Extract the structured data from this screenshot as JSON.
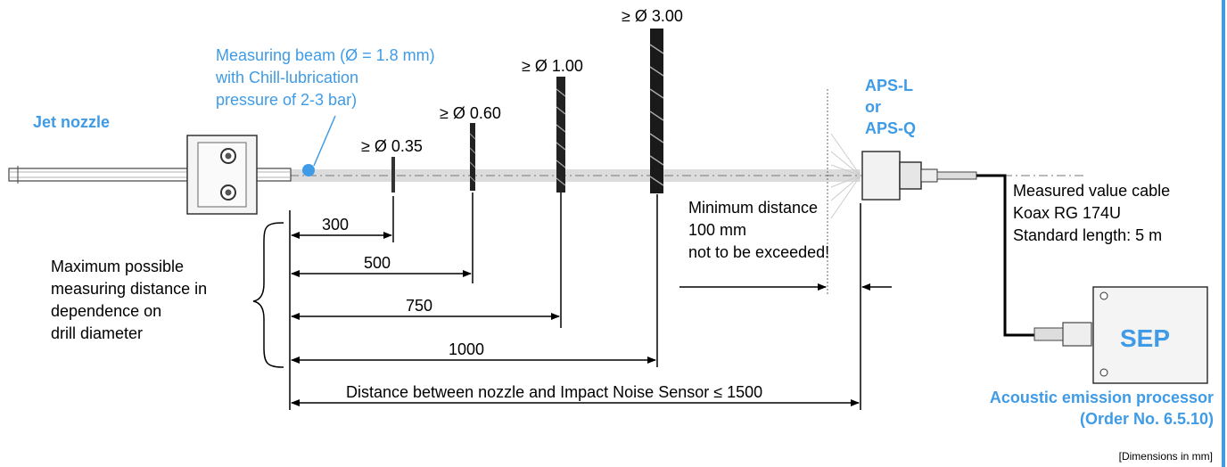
{
  "labels": {
    "jet_nozzle": "Jet nozzle",
    "beam_line1": "Measuring beam  (Ø = 1.8 mm)",
    "beam_line2": "with Chill-lubrication",
    "beam_line3": "pressure of 2-3 bar)",
    "drill_035": "≥ Ø 0.35",
    "drill_060": "≥ Ø 0.60",
    "drill_100": "≥ Ø 1.00",
    "drill_300": "≥ Ø 3.00",
    "aps_line1": "APS-L",
    "aps_line2": "or",
    "aps_line3": "APS-Q",
    "min_line1": "Minimum distance",
    "min_line2": "100 mm",
    "min_line3": "not to be exceeded!",
    "cable_line1": "Measured value cable",
    "cable_line2": "Koax RG 174U",
    "cable_line3": "Standard length:  5 m",
    "max_line1": "Maximum possible",
    "max_line2": "measuring distance in",
    "max_line3": "dependence on",
    "max_line4": "drill diameter",
    "dim_300": "300",
    "dim_500": "500",
    "dim_750": "750",
    "dim_1000": "1000",
    "dim_total": "Distance between nozzle and Impact Noise Sensor ≤ 1500",
    "sep": "SEP",
    "processor_line1": "Acoustic emission processor",
    "processor_line2": "(Order No. 6.5.10)",
    "units": "[Dimensions in mm]"
  },
  "colors": {
    "accent_blue": "#3f9be6",
    "beam": "#d9d9d9",
    "line": "#000000"
  }
}
